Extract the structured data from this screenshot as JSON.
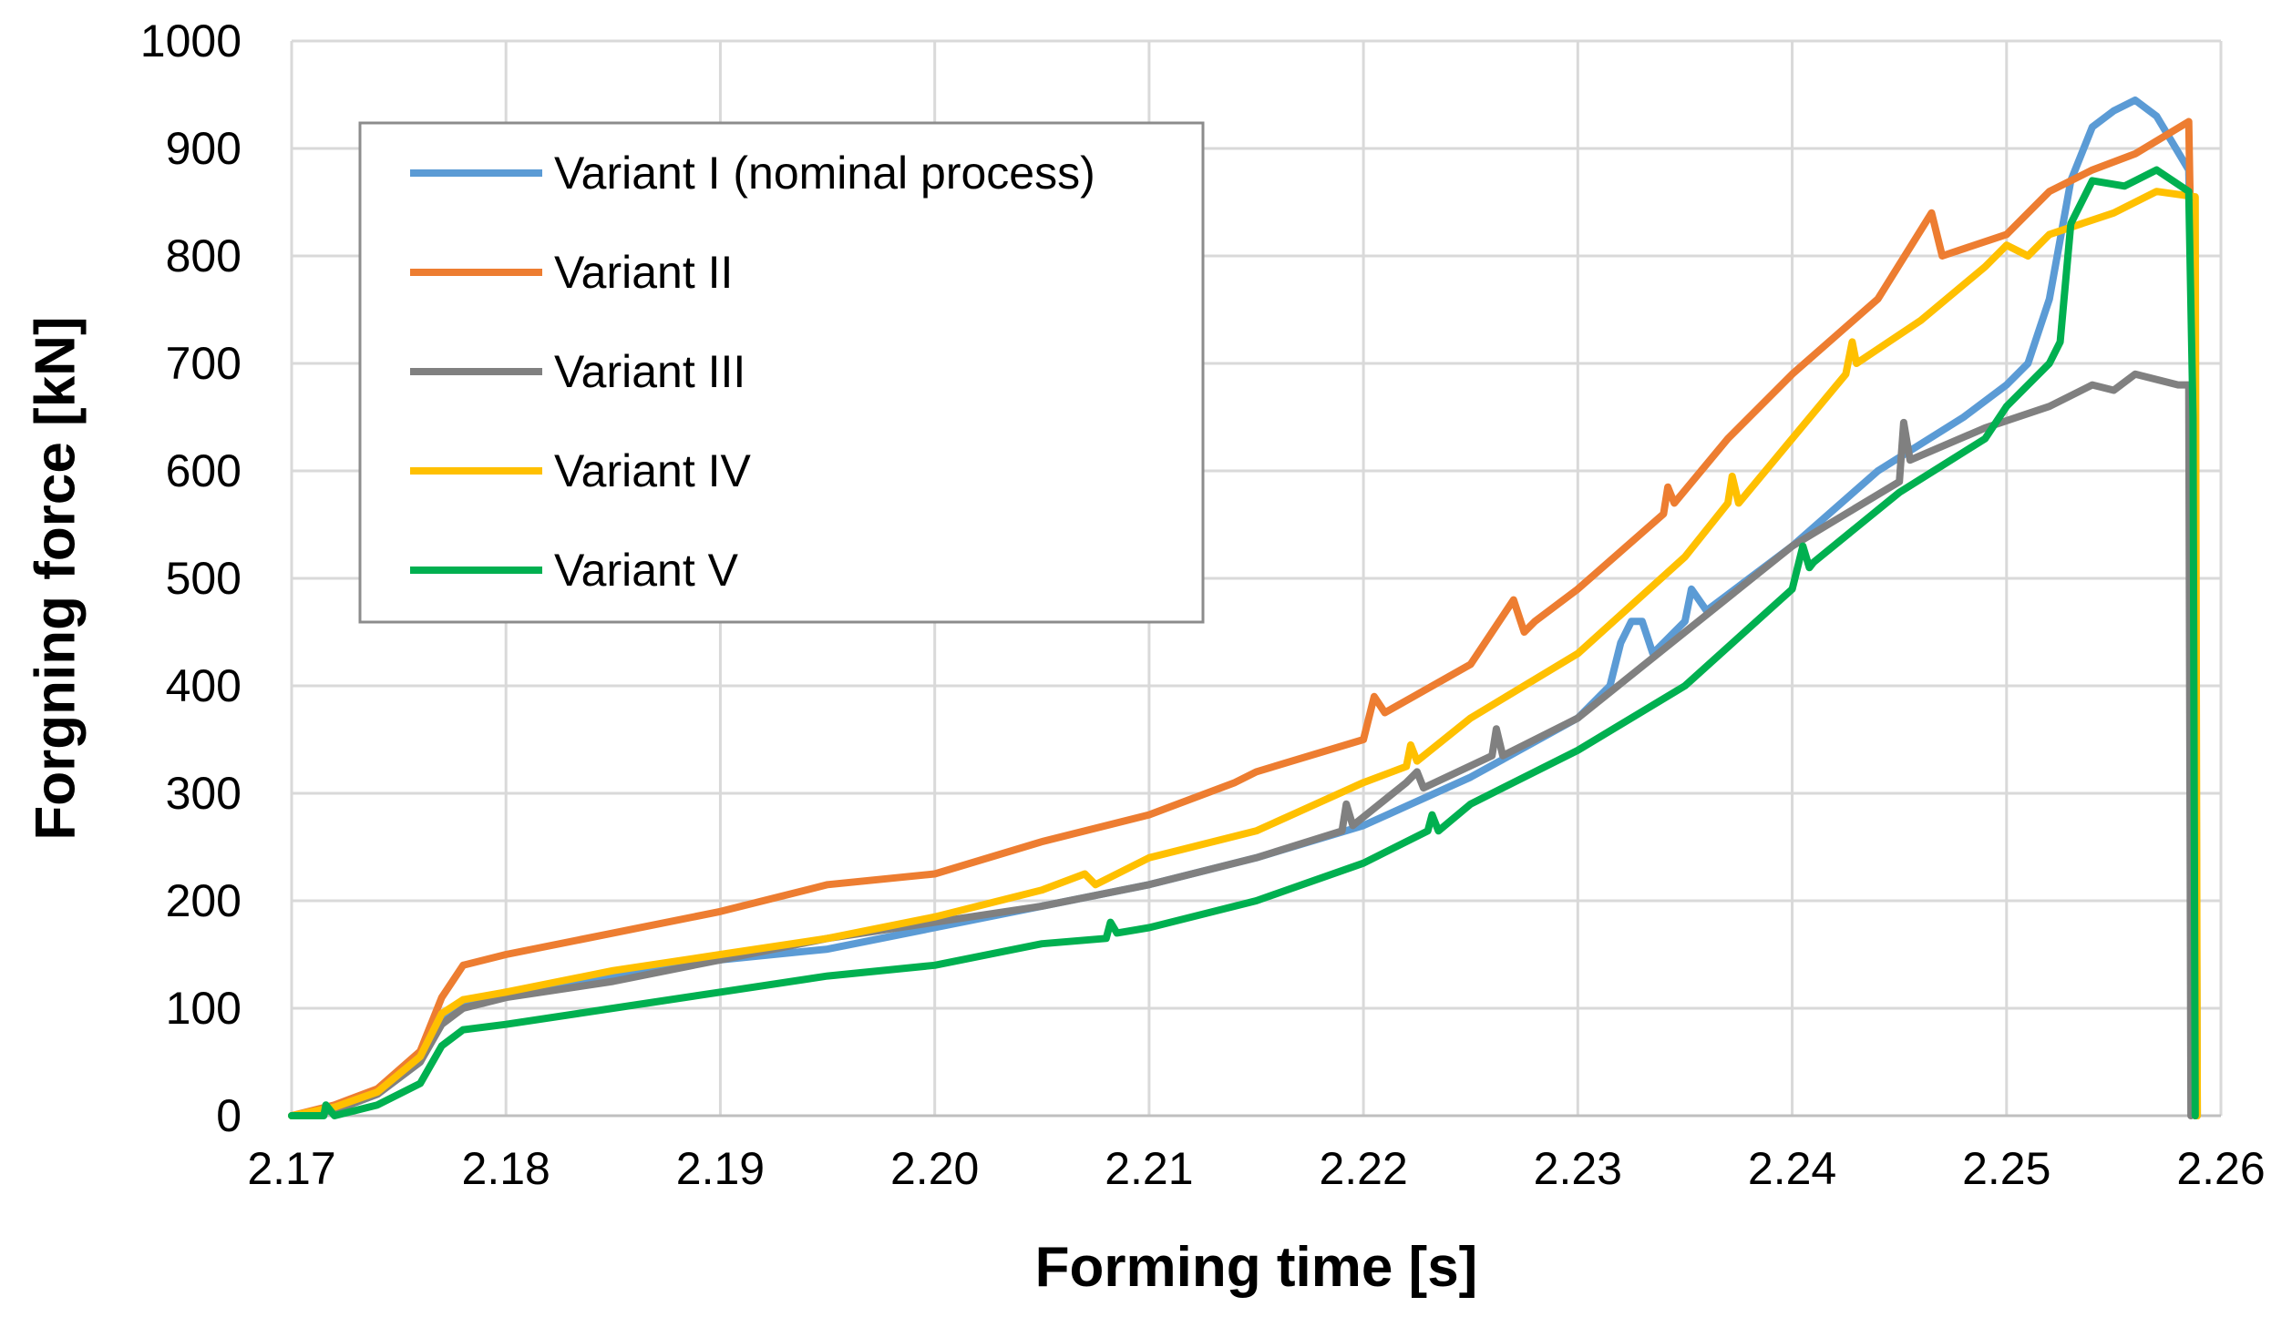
{
  "chart_data": {
    "type": "line",
    "title": "",
    "xlabel": "Forming time [s]",
    "ylabel": "Forgning force [kN]",
    "xlim": [
      2.17,
      2.26
    ],
    "ylim": [
      0,
      1000
    ],
    "xticks": [
      "2.17",
      "2.18",
      "2.19",
      "2.20",
      "2.21",
      "2.22",
      "2.23",
      "2.24",
      "2.25",
      "2.26"
    ],
    "yticks": [
      "0",
      "100",
      "200",
      "300",
      "400",
      "500",
      "600",
      "700",
      "800",
      "900",
      "1000"
    ],
    "grid": true,
    "legend_position": "top-left",
    "series": [
      {
        "name": "Variant I (nominal process)",
        "color": "#5B9BD5",
        "x": [
          2.17,
          2.172,
          2.174,
          2.176,
          2.177,
          2.178,
          2.18,
          2.185,
          2.19,
          2.195,
          2.2,
          2.205,
          2.21,
          2.215,
          2.22,
          2.225,
          2.23,
          2.2315,
          2.232,
          2.2325,
          2.233,
          2.2335,
          2.235,
          2.2353,
          2.236,
          2.24,
          2.244,
          2.248,
          2.25,
          2.251,
          2.252,
          2.253,
          2.254,
          2.255,
          2.256,
          2.257,
          2.2585,
          2.2588,
          2.2589
        ],
        "y": [
          0,
          5,
          20,
          50,
          90,
          105,
          115,
          130,
          145,
          155,
          175,
          195,
          215,
          240,
          270,
          315,
          370,
          400,
          440,
          460,
          460,
          430,
          460,
          490,
          470,
          530,
          600,
          650,
          680,
          700,
          760,
          870,
          920,
          935,
          945,
          930,
          880,
          600,
          0
        ]
      },
      {
        "name": "Variant II",
        "color": "#ED7D31",
        "x": [
          2.17,
          2.172,
          2.174,
          2.176,
          2.177,
          2.178,
          2.18,
          2.185,
          2.19,
          2.195,
          2.2,
          2.205,
          2.21,
          2.214,
          2.215,
          2.22,
          2.2205,
          2.221,
          2.225,
          2.227,
          2.2275,
          2.228,
          2.23,
          2.234,
          2.2342,
          2.2345,
          2.237,
          2.24,
          2.244,
          2.2465,
          2.247,
          2.25,
          2.252,
          2.254,
          2.256,
          2.2585,
          2.2587,
          2.2588
        ],
        "y": [
          0,
          10,
          25,
          60,
          110,
          140,
          150,
          170,
          190,
          215,
          225,
          255,
          280,
          310,
          320,
          350,
          390,
          375,
          420,
          480,
          450,
          460,
          490,
          560,
          585,
          570,
          630,
          690,
          760,
          840,
          800,
          820,
          860,
          880,
          895,
          925,
          700,
          0
        ]
      },
      {
        "name": "Variant III",
        "color": "#808080",
        "x": [
          2.17,
          2.172,
          2.174,
          2.176,
          2.177,
          2.178,
          2.18,
          2.185,
          2.19,
          2.195,
          2.2,
          2.205,
          2.21,
          2.215,
          2.219,
          2.2192,
          2.2195,
          2.222,
          2.2225,
          2.2228,
          2.226,
          2.2262,
          2.2265,
          2.23,
          2.235,
          2.24,
          2.245,
          2.2452,
          2.2455,
          2.249,
          2.252,
          2.254,
          2.255,
          2.256,
          2.258,
          2.2585,
          2.2586
        ],
        "y": [
          0,
          5,
          20,
          50,
          85,
          100,
          110,
          125,
          145,
          165,
          180,
          195,
          215,
          240,
          265,
          290,
          270,
          310,
          320,
          305,
          335,
          360,
          335,
          370,
          450,
          530,
          590,
          645,
          610,
          640,
          660,
          680,
          675,
          690,
          680,
          680,
          0
        ]
      },
      {
        "name": "Variant IV",
        "color": "#FFC000",
        "x": [
          2.17,
          2.172,
          2.174,
          2.176,
          2.177,
          2.178,
          2.18,
          2.185,
          2.19,
          2.195,
          2.2,
          2.205,
          2.207,
          2.2075,
          2.21,
          2.215,
          2.22,
          2.222,
          2.2222,
          2.2225,
          2.225,
          2.23,
          2.235,
          2.237,
          2.2372,
          2.2375,
          2.24,
          2.2425,
          2.2428,
          2.243,
          2.246,
          2.249,
          2.25,
          2.251,
          2.252,
          2.255,
          2.257,
          2.2588,
          2.2589
        ],
        "y": [
          0,
          8,
          22,
          55,
          95,
          108,
          115,
          135,
          150,
          165,
          185,
          210,
          225,
          215,
          240,
          265,
          310,
          325,
          345,
          330,
          370,
          430,
          520,
          570,
          595,
          570,
          630,
          690,
          720,
          700,
          740,
          790,
          810,
          800,
          820,
          840,
          860,
          855,
          0
        ]
      },
      {
        "name": "Variant V",
        "color": "#00B050",
        "x": [
          2.17,
          2.1715,
          2.1716,
          2.172,
          2.174,
          2.176,
          2.177,
          2.178,
          2.18,
          2.185,
          2.19,
          2.195,
          2.2,
          2.205,
          2.208,
          2.2082,
          2.2085,
          2.21,
          2.215,
          2.22,
          2.223,
          2.2232,
          2.2235,
          2.225,
          2.23,
          2.235,
          2.24,
          2.2405,
          2.2408,
          2.241,
          2.245,
          2.249,
          2.25,
          2.251,
          2.252,
          2.2525,
          2.253,
          2.254,
          2.2555,
          2.256,
          2.257,
          2.2585,
          2.2587,
          2.2588
        ],
        "y": [
          0,
          0,
          10,
          0,
          10,
          30,
          65,
          80,
          85,
          100,
          115,
          130,
          140,
          160,
          165,
          180,
          170,
          175,
          200,
          235,
          265,
          280,
          265,
          290,
          340,
          400,
          490,
          530,
          510,
          515,
          580,
          630,
          660,
          680,
          700,
          720,
          830,
          870,
          865,
          870,
          880,
          860,
          650,
          0
        ]
      }
    ]
  }
}
